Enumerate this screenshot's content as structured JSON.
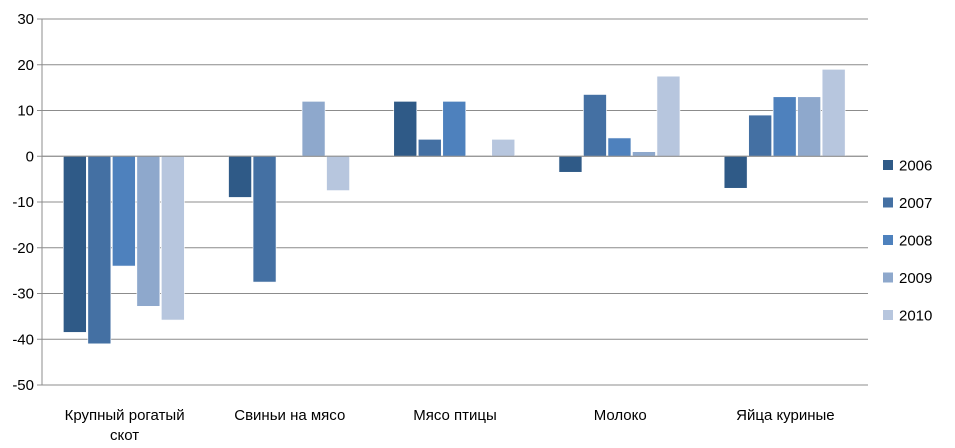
{
  "chart_data": {
    "type": "bar",
    "categories": [
      "Крупный рогатый скот",
      "Свиньи на мясо",
      "Мясо птицы",
      "Молоко",
      "Яйца куриные"
    ],
    "series": [
      {
        "name": "2006",
        "values": [
          -38.5,
          -9.0,
          12.0,
          -3.5,
          -7.0
        ],
        "color": "#2f5a87"
      },
      {
        "name": "2007",
        "values": [
          -41.0,
          -27.5,
          3.7,
          13.5,
          9.0
        ],
        "color": "#4470a3"
      },
      {
        "name": "2008",
        "values": [
          -24.0,
          0,
          12.0,
          4.0,
          13.0
        ],
        "color": "#4e81bd"
      },
      {
        "name": "2009",
        "values": [
          -32.8,
          12.0,
          0,
          1.0,
          13.0
        ],
        "color": "#8ea8cc"
      },
      {
        "name": "2010",
        "values": [
          -35.8,
          -7.5,
          3.7,
          17.5,
          19.0
        ],
        "color": "#b7c6de"
      }
    ],
    "ylim": [
      -50,
      30
    ],
    "yticks": [
      30,
      20,
      10,
      0,
      -10,
      -20,
      -30,
      -40,
      -50
    ],
    "grid": true,
    "legend_position": "right",
    "category_label_lines": [
      [
        "Крупный рогатый",
        "скот"
      ],
      [
        "Свиньи на мясо"
      ],
      [
        "Мясо птицы"
      ],
      [
        "Молоко"
      ],
      [
        "Яйца куриные"
      ]
    ]
  }
}
